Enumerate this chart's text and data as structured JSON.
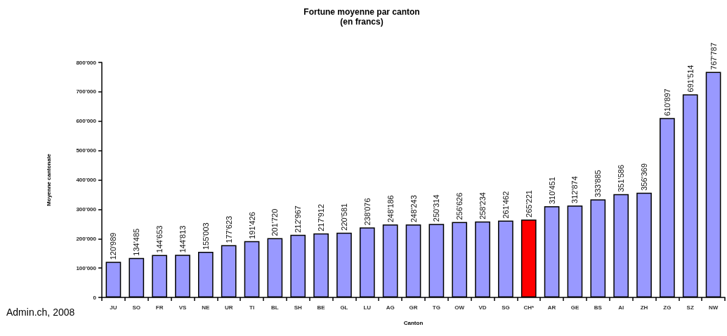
{
  "chart_data": {
    "type": "bar",
    "title": "Fortune moyenne par canton",
    "subtitle": "(en francs)",
    "xlabel": "Canton",
    "ylabel": "Moyenne cantonale",
    "categories": [
      "JU",
      "SO",
      "FR",
      "VS",
      "NE",
      "UR",
      "TI",
      "BL",
      "SH",
      "BE",
      "GL",
      "LU",
      "AG",
      "GR",
      "TG",
      "OW",
      "VD",
      "SG",
      "CH*",
      "AR",
      "GE",
      "BS",
      "AI",
      "ZH",
      "ZG",
      "SZ",
      "NW"
    ],
    "values": [
      120989,
      134485,
      144653,
      144813,
      155003,
      177623,
      191426,
      201720,
      212967,
      217912,
      220581,
      238076,
      248186,
      248243,
      250314,
      256626,
      258234,
      261462,
      265221,
      310451,
      312874,
      333885,
      351586,
      356369,
      610897,
      691514,
      767787
    ],
    "value_labels": [
      "120'989",
      "134'485",
      "144'653",
      "144'813",
      "155'003",
      "177'623",
      "191'426",
      "201'720",
      "212'967",
      "217'912",
      "220'581",
      "238'076",
      "248'186",
      "248'243",
      "250'314",
      "256'626",
      "258'234",
      "261'462",
      "265'221",
      "310'451",
      "312'874",
      "333'885",
      "351'586",
      "356'369",
      "610'897",
      "691'514",
      "767'787"
    ],
    "colors": [
      "#9999ff",
      "#9999ff",
      "#9999ff",
      "#9999ff",
      "#9999ff",
      "#9999ff",
      "#9999ff",
      "#9999ff",
      "#9999ff",
      "#9999ff",
      "#9999ff",
      "#9999ff",
      "#9999ff",
      "#9999ff",
      "#9999ff",
      "#9999ff",
      "#9999ff",
      "#9999ff",
      "#ff0000",
      "#9999ff",
      "#9999ff",
      "#9999ff",
      "#9999ff",
      "#9999ff",
      "#9999ff",
      "#9999ff",
      "#9999ff"
    ],
    "ylim": [
      0,
      800000
    ],
    "yticks": [
      0,
      {
        "value": 100000,
        "label": "100'000"
      },
      {
        "value": 200000,
        "label": "200'000"
      },
      {
        "value": 300000,
        "label": "300'000"
      },
      {
        "value": 400000,
        "label": "400'000"
      },
      {
        "value": 500000,
        "label": "500'000"
      },
      {
        "value": 600000,
        "label": "600'000"
      },
      {
        "value": 700000,
        "label": "700'000"
      },
      {
        "value": 800000,
        "label": "800'000"
      }
    ],
    "annotations": [
      "Admin.ch, 2008"
    ]
  }
}
